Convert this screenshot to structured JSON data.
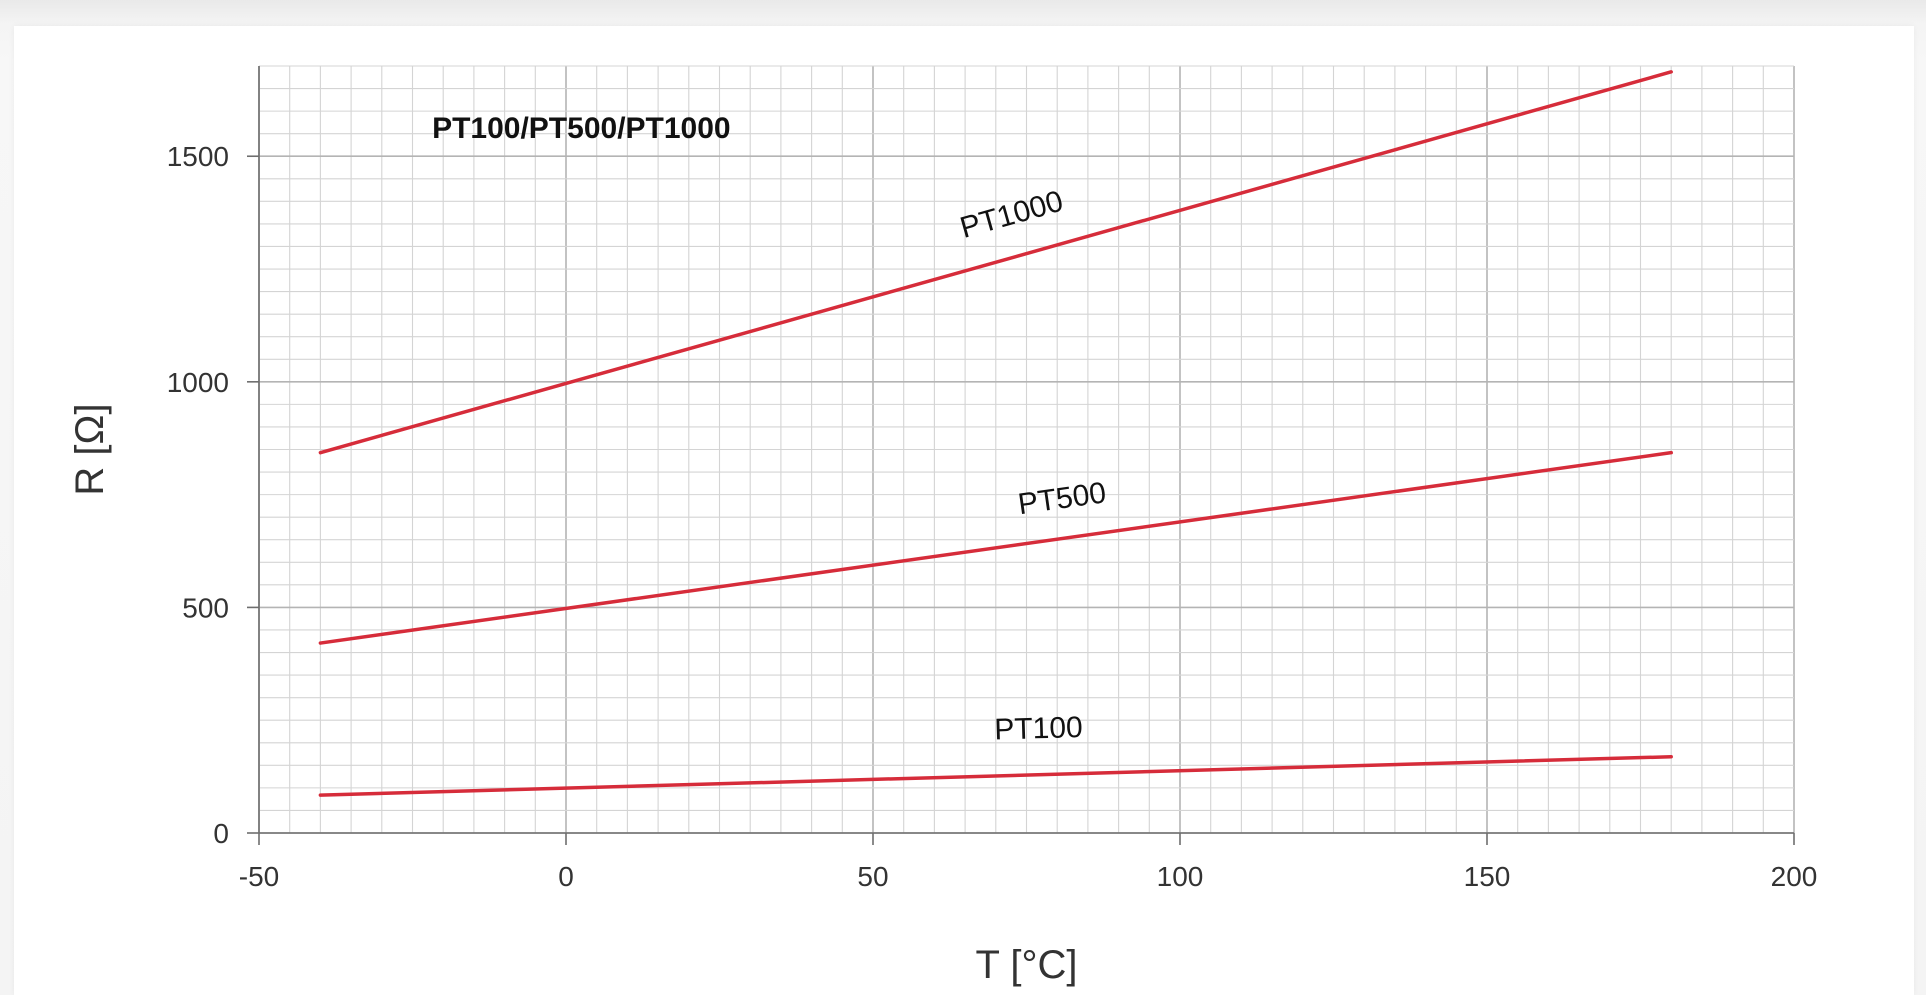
{
  "chart_data": {
    "type": "line",
    "title": "PT100/PT500/PT1000",
    "xlabel": "T [°C]",
    "ylabel": "R [Ω]",
    "xlim": [
      -50,
      200
    ],
    "ylim": [
      0,
      1700
    ],
    "xticks": [
      -50,
      0,
      50,
      100,
      150,
      200
    ],
    "yticks": [
      0,
      500,
      1000,
      1500
    ],
    "xtick_labels": [
      "-50",
      "0",
      "50",
      "100",
      "150",
      "200"
    ],
    "ytick_labels": [
      "0",
      "500",
      "1000",
      "1500"
    ],
    "grid": true,
    "minor_grid_x_step": 5,
    "minor_grid_y_step": 50,
    "line_color": "#d62c3a",
    "series": [
      {
        "name": "PT1000",
        "x": [
          -40,
          180
        ],
        "y": [
          843,
          1687
        ]
      },
      {
        "name": "PT500",
        "x": [
          -40,
          180
        ],
        "y": [
          421,
          843
        ]
      },
      {
        "name": "PT100",
        "x": [
          -40,
          180
        ],
        "y": [
          84,
          169
        ]
      }
    ],
    "series_label_positions": [
      {
        "name": "PT1000",
        "x": 73,
        "y": 1350
      },
      {
        "name": "PT500",
        "x": 81,
        "y": 720
      },
      {
        "name": "PT100",
        "x": 77,
        "y": 210
      }
    ],
    "title_position": {
      "x": 2.5,
      "y": 1540
    }
  }
}
